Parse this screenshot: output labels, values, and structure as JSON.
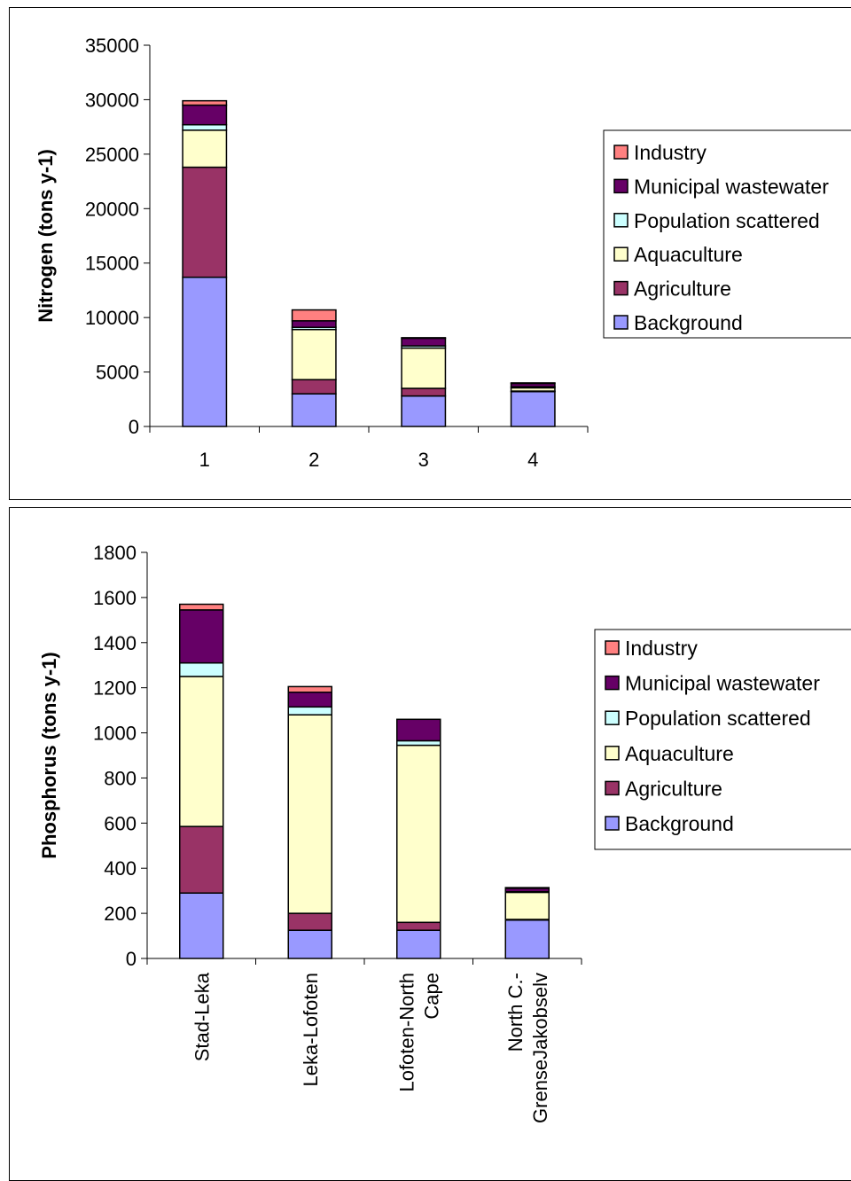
{
  "colors": {
    "Background": "#9999ff",
    "Agriculture": "#993366",
    "Aquaculture": "#ffffcc",
    "Population scattered": "#ccffff",
    "Municipal wastewater": "#660066",
    "Industry": "#ff8080"
  },
  "chart_data": [
    {
      "type": "bar",
      "stacked": true,
      "title": "",
      "xlabel": "",
      "ylabel": "Nitrogen (tons y-1)",
      "ylim": [
        0,
        35000
      ],
      "yticks": [
        0,
        5000,
        10000,
        15000,
        20000,
        25000,
        30000,
        35000
      ],
      "categories": [
        "1",
        "2",
        "3",
        "4"
      ],
      "legend_position": "right",
      "legend": [
        "Industry",
        "Municipal wastewater",
        "Population scattered",
        "Aquaculture",
        "Agriculture",
        "Background"
      ],
      "series": [
        {
          "name": "Background",
          "values": [
            13700,
            3000,
            2800,
            3200
          ]
        },
        {
          "name": "Agriculture",
          "values": [
            10100,
            1300,
            700,
            50
          ]
        },
        {
          "name": "Aquaculture",
          "values": [
            3400,
            4600,
            3700,
            300
          ]
        },
        {
          "name": "Population scattered",
          "values": [
            500,
            200,
            200,
            100
          ]
        },
        {
          "name": "Municipal wastewater",
          "values": [
            1800,
            600,
            700,
            300
          ]
        },
        {
          "name": "Industry",
          "values": [
            400,
            1000,
            50,
            50
          ]
        }
      ]
    },
    {
      "type": "bar",
      "stacked": true,
      "title": "",
      "xlabel": "",
      "ylabel": "Phosphorus (tons y-1)",
      "ylim": [
        0,
        1800
      ],
      "yticks": [
        0,
        200,
        400,
        600,
        800,
        1000,
        1200,
        1400,
        1600,
        1800
      ],
      "categories": [
        "Stad-Leka",
        "Leka-Lofoten",
        "Lofoten-North Cape",
        "North C.- GrenseJakobselv"
      ],
      "category_lines": [
        [
          "Stad-Leka"
        ],
        [
          "Leka-Lofoten"
        ],
        [
          "Lofoten-North",
          "Cape"
        ],
        [
          "North C.-",
          "GrenseJakobselv"
        ]
      ],
      "legend_position": "right",
      "legend": [
        "Industry",
        "Municipal wastewater",
        "Population scattered",
        "Aquaculture",
        "Agriculture",
        "Background"
      ],
      "series": [
        {
          "name": "Background",
          "values": [
            290,
            125,
            125,
            170
          ]
        },
        {
          "name": "Agriculture",
          "values": [
            295,
            75,
            35,
            3
          ]
        },
        {
          "name": "Aquaculture",
          "values": [
            665,
            880,
            785,
            120
          ]
        },
        {
          "name": "Population scattered",
          "values": [
            60,
            35,
            20,
            3
          ]
        },
        {
          "name": "Municipal wastewater",
          "values": [
            235,
            65,
            95,
            15
          ]
        },
        {
          "name": "Industry",
          "values": [
            25,
            25,
            0,
            3
          ]
        }
      ]
    }
  ]
}
